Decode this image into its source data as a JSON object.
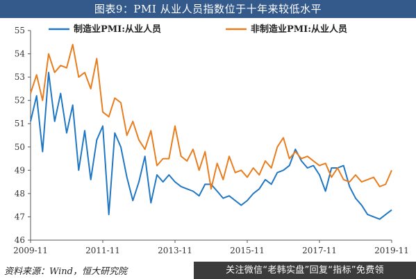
{
  "title": "图表9：PMI 从业人员指数位于十年来较低水平",
  "source": "资料来源：Wind，恒大研究院",
  "watermark": "关注微信“老韩实盘”回复“指标”免费领",
  "chart_data": {
    "type": "line",
    "ylim": [
      46,
      55
    ],
    "yticks": [
      46,
      47,
      48,
      49,
      50,
      51,
      52,
      53,
      54,
      55
    ],
    "xlim": [
      "2009-11",
      "2019-11"
    ],
    "xticks": [
      "2009-11",
      "2011-11",
      "2013-11",
      "2015-11",
      "2017-11",
      "2019-11"
    ],
    "legend_position": "top",
    "x": [
      "2009-11",
      "2010-01",
      "2010-03",
      "2010-05",
      "2010-07",
      "2010-09",
      "2010-11",
      "2011-01",
      "2011-03",
      "2011-05",
      "2011-07",
      "2011-09",
      "2011-11",
      "2012-01",
      "2012-03",
      "2012-05",
      "2012-07",
      "2012-09",
      "2012-11",
      "2013-01",
      "2013-03",
      "2013-05",
      "2013-07",
      "2013-09",
      "2013-11",
      "2014-01",
      "2014-03",
      "2014-05",
      "2014-07",
      "2014-09",
      "2014-11",
      "2015-01",
      "2015-03",
      "2015-05",
      "2015-07",
      "2015-09",
      "2015-11",
      "2016-01",
      "2016-03",
      "2016-05",
      "2016-07",
      "2016-09",
      "2016-11",
      "2017-01",
      "2017-03",
      "2017-05",
      "2017-07",
      "2017-09",
      "2017-11",
      "2018-01",
      "2018-03",
      "2018-05",
      "2018-07",
      "2018-09",
      "2018-11",
      "2019-01",
      "2019-03",
      "2019-05",
      "2019-07",
      "2019-09",
      "2019-11"
    ],
    "series": [
      {
        "name": "制造业PMI:从业人员",
        "color": "#1f77c4",
        "values": [
          51.1,
          52.2,
          49.8,
          53.2,
          51.1,
          52.3,
          50.6,
          51.8,
          49.0,
          50.7,
          48.6,
          50.3,
          50.9,
          47.1,
          50.6,
          50.0,
          48.7,
          47.7,
          48.5,
          49.6,
          47.6,
          48.8,
          48.5,
          48.8,
          48.5,
          48.3,
          48.2,
          48.1,
          47.9,
          48.4,
          48.4,
          48.1,
          47.8,
          47.9,
          47.7,
          47.5,
          47.7,
          48.0,
          48.2,
          48.6,
          48.4,
          48.9,
          49.0,
          49.2,
          49.9,
          49.4,
          49.1,
          49.2,
          48.8,
          48.1,
          49.1,
          49.1,
          49.2,
          48.3,
          47.8,
          47.5,
          47.1,
          47.0,
          46.9,
          47.1,
          47.3
        ]
      },
      {
        "name": "非制造业PMI:从业人员",
        "color": "#e87d1e",
        "values": [
          52.3,
          53.1,
          52.0,
          54.0,
          53.2,
          53.5,
          53.4,
          54.4,
          53.0,
          53.2,
          52.5,
          53.8,
          51.5,
          51.3,
          52.1,
          51.9,
          50.5,
          51.1,
          50.3,
          49.9,
          50.7,
          49.2,
          49.5,
          49.5,
          50.9,
          49.6,
          49.4,
          49.9,
          49.0,
          49.8,
          48.2,
          49.3,
          48.6,
          49.6,
          48.9,
          49.0,
          48.7,
          49.1,
          48.8,
          49.4,
          49.1,
          50.0,
          50.4,
          49.5,
          49.8,
          49.5,
          49.6,
          49.4,
          49.2,
          49.3,
          48.7,
          49.1,
          48.6,
          48.5,
          48.8,
          48.5,
          48.6,
          48.7,
          48.3,
          48.4,
          49.0
        ]
      }
    ]
  }
}
